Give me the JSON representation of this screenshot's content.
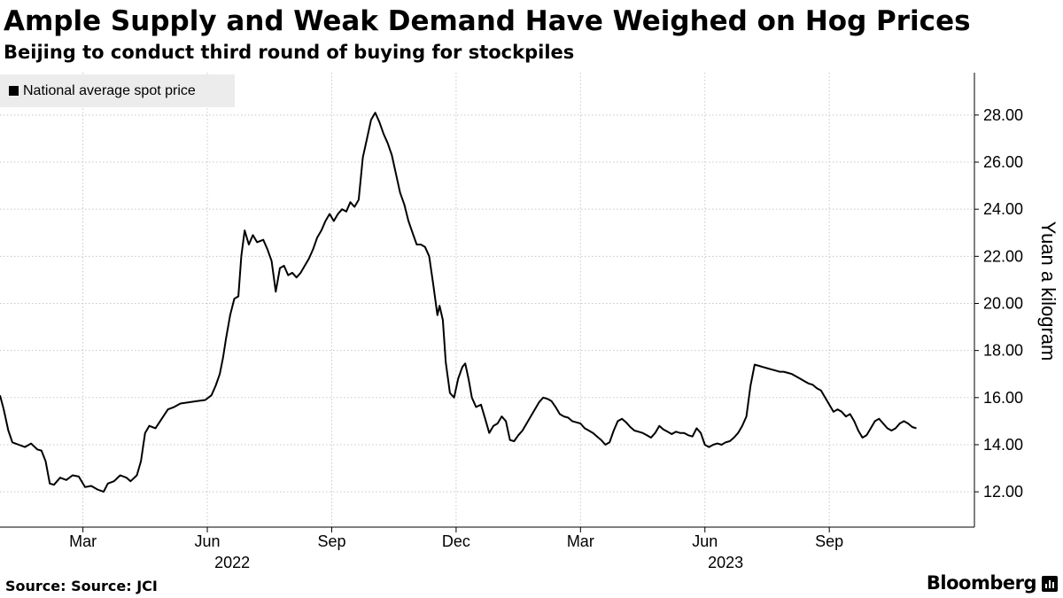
{
  "header": {
    "title": "Ample Supply and Weak Demand Have Weighed on Hog Prices",
    "subtitle": "Beijing to conduct third round of buying for stockpiles"
  },
  "legend": {
    "label": "National average spot price"
  },
  "footer": {
    "source": "Source: Source: JCI",
    "brand": "Bloomberg"
  },
  "colors": {
    "line": "#000000",
    "grid": "#c8c8c8",
    "legend_bg": "#ececec"
  },
  "chart_data": {
    "type": "line",
    "title": "Ample Supply and Weak Demand Have Weighed on Hog Prices",
    "subtitle": "Beijing to conduct third round of buying for stockpiles",
    "xlabel": "",
    "ylabel": "Yuan a kilogram",
    "y_axis_side": "right",
    "ylim": [
      10.5,
      29.8
    ],
    "xlim": [
      0,
      23.5
    ],
    "grid": true,
    "legend_position": "top-left",
    "y_ticks": [
      12,
      14,
      16,
      18,
      20,
      22,
      24,
      26,
      28
    ],
    "y_tick_labels": [
      "12.00",
      "14.00",
      "16.00",
      "18.00",
      "20.00",
      "22.00",
      "24.00",
      "26.00",
      "28.00"
    ],
    "x_ticks": [
      {
        "x": 2,
        "label": "Mar"
      },
      {
        "x": 5,
        "label": "Jun"
      },
      {
        "x": 8,
        "label": "Sep"
      },
      {
        "x": 11,
        "label": "Dec"
      },
      {
        "x": 14,
        "label": "Mar"
      },
      {
        "x": 17,
        "label": "Jun"
      },
      {
        "x": 20,
        "label": "Sep"
      }
    ],
    "year_labels": [
      {
        "x": 5.6,
        "label": "2022"
      },
      {
        "x": 17.5,
        "label": "2023"
      }
    ],
    "series": [
      {
        "name": "National average spot price",
        "points": [
          [
            0.0,
            16.1
          ],
          [
            0.09,
            15.5
          ],
          [
            0.2,
            14.6
          ],
          [
            0.3,
            14.1
          ],
          [
            0.45,
            14.0
          ],
          [
            0.6,
            13.9
          ],
          [
            0.75,
            14.05
          ],
          [
            0.9,
            13.8
          ],
          [
            1.0,
            13.75
          ],
          [
            1.1,
            13.3
          ],
          [
            1.2,
            12.35
          ],
          [
            1.3,
            12.3
          ],
          [
            1.45,
            12.6
          ],
          [
            1.6,
            12.5
          ],
          [
            1.75,
            12.7
          ],
          [
            1.9,
            12.65
          ],
          [
            2.05,
            12.2
          ],
          [
            2.2,
            12.25
          ],
          [
            2.35,
            12.1
          ],
          [
            2.5,
            12.0
          ],
          [
            2.6,
            12.35
          ],
          [
            2.75,
            12.45
          ],
          [
            2.9,
            12.7
          ],
          [
            3.05,
            12.6
          ],
          [
            3.15,
            12.45
          ],
          [
            3.3,
            12.7
          ],
          [
            3.4,
            13.3
          ],
          [
            3.5,
            14.5
          ],
          [
            3.6,
            14.8
          ],
          [
            3.75,
            14.7
          ],
          [
            3.9,
            15.1
          ],
          [
            4.05,
            15.5
          ],
          [
            4.2,
            15.6
          ],
          [
            4.35,
            15.75
          ],
          [
            4.55,
            15.8
          ],
          [
            4.75,
            15.85
          ],
          [
            4.95,
            15.9
          ],
          [
            5.1,
            16.1
          ],
          [
            5.2,
            16.5
          ],
          [
            5.3,
            17.0
          ],
          [
            5.38,
            17.7
          ],
          [
            5.45,
            18.5
          ],
          [
            5.55,
            19.5
          ],
          [
            5.65,
            20.2
          ],
          [
            5.75,
            20.3
          ],
          [
            5.82,
            22.0
          ],
          [
            5.9,
            23.1
          ],
          [
            6.0,
            22.5
          ],
          [
            6.1,
            22.9
          ],
          [
            6.2,
            22.6
          ],
          [
            6.35,
            22.7
          ],
          [
            6.45,
            22.3
          ],
          [
            6.55,
            21.8
          ],
          [
            6.65,
            20.5
          ],
          [
            6.75,
            21.5
          ],
          [
            6.85,
            21.6
          ],
          [
            6.95,
            21.2
          ],
          [
            7.05,
            21.3
          ],
          [
            7.15,
            21.1
          ],
          [
            7.25,
            21.3
          ],
          [
            7.35,
            21.6
          ],
          [
            7.45,
            21.9
          ],
          [
            7.55,
            22.3
          ],
          [
            7.65,
            22.8
          ],
          [
            7.75,
            23.1
          ],
          [
            7.85,
            23.5
          ],
          [
            7.95,
            23.8
          ],
          [
            8.05,
            23.5
          ],
          [
            8.15,
            23.8
          ],
          [
            8.25,
            24.0
          ],
          [
            8.35,
            23.9
          ],
          [
            8.45,
            24.3
          ],
          [
            8.55,
            24.1
          ],
          [
            8.65,
            24.4
          ],
          [
            8.75,
            26.2
          ],
          [
            8.85,
            27.0
          ],
          [
            8.95,
            27.8
          ],
          [
            9.05,
            28.1
          ],
          [
            9.15,
            27.7
          ],
          [
            9.25,
            27.2
          ],
          [
            9.35,
            26.8
          ],
          [
            9.45,
            26.3
          ],
          [
            9.55,
            25.5
          ],
          [
            9.65,
            24.7
          ],
          [
            9.75,
            24.2
          ],
          [
            9.85,
            23.5
          ],
          [
            9.95,
            23.0
          ],
          [
            10.05,
            22.5
          ],
          [
            10.15,
            22.5
          ],
          [
            10.25,
            22.4
          ],
          [
            10.35,
            22.0
          ],
          [
            10.45,
            20.8
          ],
          [
            10.55,
            19.5
          ],
          [
            10.6,
            19.9
          ],
          [
            10.68,
            19.3
          ],
          [
            10.75,
            17.5
          ],
          [
            10.85,
            16.2
          ],
          [
            10.95,
            16.0
          ],
          [
            11.05,
            16.8
          ],
          [
            11.15,
            17.3
          ],
          [
            11.22,
            17.45
          ],
          [
            11.3,
            16.8
          ],
          [
            11.38,
            16.0
          ],
          [
            11.48,
            15.6
          ],
          [
            11.6,
            15.7
          ],
          [
            11.7,
            15.1
          ],
          [
            11.8,
            14.5
          ],
          [
            11.9,
            14.8
          ],
          [
            12.0,
            14.9
          ],
          [
            12.1,
            15.2
          ],
          [
            12.2,
            15.0
          ],
          [
            12.3,
            14.2
          ],
          [
            12.4,
            14.15
          ],
          [
            12.5,
            14.4
          ],
          [
            12.6,
            14.6
          ],
          [
            12.7,
            14.9
          ],
          [
            12.8,
            15.2
          ],
          [
            12.9,
            15.5
          ],
          [
            13.0,
            15.8
          ],
          [
            13.1,
            16.0
          ],
          [
            13.2,
            15.95
          ],
          [
            13.3,
            15.85
          ],
          [
            13.4,
            15.6
          ],
          [
            13.5,
            15.3
          ],
          [
            13.6,
            15.2
          ],
          [
            13.7,
            15.15
          ],
          [
            13.8,
            15.0
          ],
          [
            13.9,
            14.95
          ],
          [
            14.0,
            14.9
          ],
          [
            14.1,
            14.7
          ],
          [
            14.2,
            14.6
          ],
          [
            14.3,
            14.5
          ],
          [
            14.4,
            14.35
          ],
          [
            14.5,
            14.2
          ],
          [
            14.6,
            14.0
          ],
          [
            14.7,
            14.1
          ],
          [
            14.8,
            14.6
          ],
          [
            14.9,
            15.0
          ],
          [
            15.0,
            15.1
          ],
          [
            15.1,
            14.95
          ],
          [
            15.2,
            14.75
          ],
          [
            15.3,
            14.6
          ],
          [
            15.4,
            14.55
          ],
          [
            15.5,
            14.5
          ],
          [
            15.6,
            14.4
          ],
          [
            15.7,
            14.3
          ],
          [
            15.8,
            14.5
          ],
          [
            15.9,
            14.8
          ],
          [
            16.0,
            14.65
          ],
          [
            16.1,
            14.55
          ],
          [
            16.2,
            14.45
          ],
          [
            16.3,
            14.55
          ],
          [
            16.4,
            14.5
          ],
          [
            16.5,
            14.5
          ],
          [
            16.6,
            14.4
          ],
          [
            16.7,
            14.35
          ],
          [
            16.8,
            14.7
          ],
          [
            16.9,
            14.5
          ],
          [
            17.0,
            14.0
          ],
          [
            17.1,
            13.9
          ],
          [
            17.2,
            14.0
          ],
          [
            17.3,
            14.05
          ],
          [
            17.4,
            14.0
          ],
          [
            17.5,
            14.1
          ],
          [
            17.6,
            14.15
          ],
          [
            17.7,
            14.3
          ],
          [
            17.8,
            14.5
          ],
          [
            17.9,
            14.8
          ],
          [
            18.0,
            15.2
          ],
          [
            18.1,
            16.5
          ],
          [
            18.2,
            17.4
          ],
          [
            18.3,
            17.35
          ],
          [
            18.4,
            17.3
          ],
          [
            18.5,
            17.25
          ],
          [
            18.6,
            17.2
          ],
          [
            18.7,
            17.15
          ],
          [
            18.8,
            17.1
          ],
          [
            18.9,
            17.1
          ],
          [
            19.0,
            17.05
          ],
          [
            19.1,
            17.0
          ],
          [
            19.2,
            16.9
          ],
          [
            19.3,
            16.8
          ],
          [
            19.4,
            16.7
          ],
          [
            19.5,
            16.6
          ],
          [
            19.6,
            16.55
          ],
          [
            19.7,
            16.4
          ],
          [
            19.8,
            16.3
          ],
          [
            19.9,
            16.0
          ],
          [
            20.0,
            15.7
          ],
          [
            20.1,
            15.4
          ],
          [
            20.2,
            15.5
          ],
          [
            20.3,
            15.4
          ],
          [
            20.4,
            15.2
          ],
          [
            20.5,
            15.3
          ],
          [
            20.6,
            15.0
          ],
          [
            20.7,
            14.6
          ],
          [
            20.8,
            14.3
          ],
          [
            20.9,
            14.4
          ],
          [
            21.0,
            14.7
          ],
          [
            21.1,
            15.0
          ],
          [
            21.2,
            15.1
          ],
          [
            21.3,
            14.9
          ],
          [
            21.4,
            14.7
          ],
          [
            21.5,
            14.6
          ],
          [
            21.6,
            14.7
          ],
          [
            21.7,
            14.9
          ],
          [
            21.8,
            15.0
          ],
          [
            21.9,
            14.9
          ],
          [
            22.0,
            14.75
          ],
          [
            22.1,
            14.7
          ]
        ]
      }
    ]
  }
}
